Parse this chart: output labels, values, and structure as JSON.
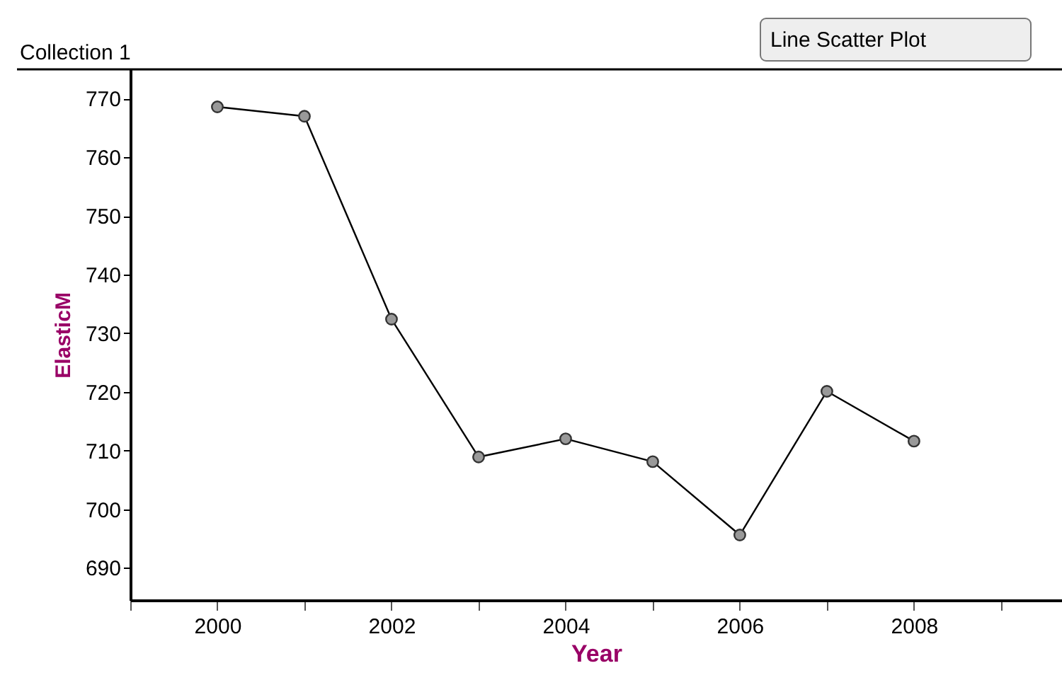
{
  "chart_data": {
    "type": "line",
    "title": "Collection 1",
    "xlabel": "Year",
    "ylabel": "ElasticM",
    "annotations": [
      "Line Scatter Plot"
    ],
    "x": [
      2000,
      2001,
      2002,
      2003,
      2004,
      2005,
      2006,
      2007,
      2008
    ],
    "series": [
      {
        "color": "#000000",
        "values": [
          768.6,
          767.0,
          732.4,
          708.9,
          712.0,
          708.1,
          695.6,
          720.1,
          711.6
        ]
      }
    ],
    "xlim": [
      1999,
      2009.7
    ],
    "xticks": [
      {
        "value": 1999,
        "label": null
      },
      2000,
      {
        "value": 2001,
        "label": null
      },
      2002,
      {
        "value": 2003,
        "label": null
      },
      2004,
      {
        "value": 2005,
        "label": null
      },
      2006,
      {
        "value": 2007,
        "label": null
      },
      2008,
      {
        "value": 2009,
        "label": null
      }
    ],
    "ylim": [
      684.5,
      775
    ],
    "yticks": [
      690,
      700,
      710,
      720,
      730,
      740,
      750,
      760,
      770
    ],
    "grid": false,
    "marker": "circle",
    "line_style": "solid"
  }
}
